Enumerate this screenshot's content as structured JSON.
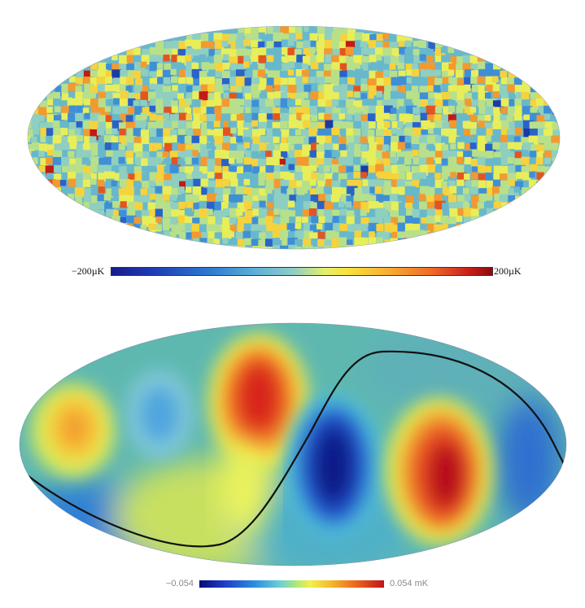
{
  "top_map": {
    "colorbar": {
      "min_label": "−200µK",
      "max_label": "200µK"
    }
  },
  "bottom_map": {
    "colorbar": {
      "min_label": "−0.054",
      "max_label": "0.054  mK"
    }
  }
}
